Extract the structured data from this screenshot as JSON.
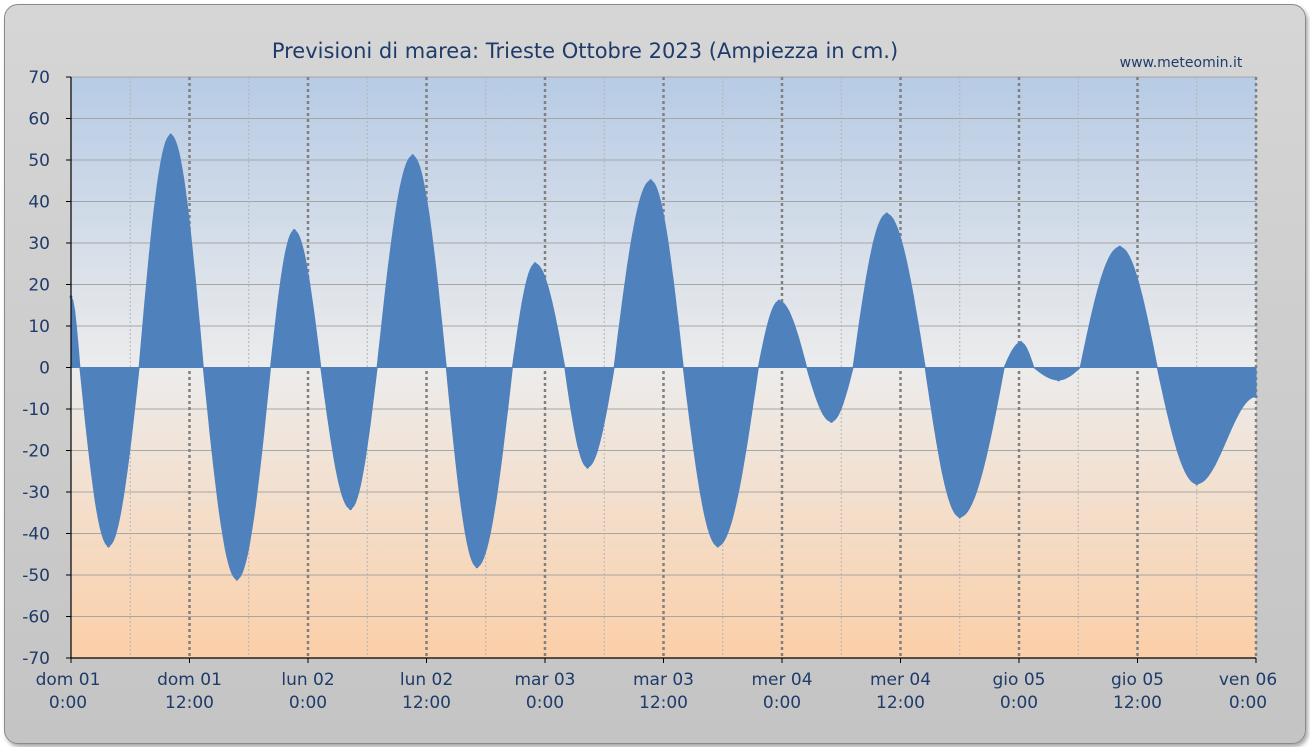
{
  "chart_data": {
    "type": "area",
    "title": "Previsioni di marea: Trieste Ottobre 2023 (Ampiezza in cm.)",
    "watermark": "www.meteomin.it",
    "ylim": [
      -70,
      70
    ],
    "yticks": [
      70,
      60,
      50,
      40,
      30,
      20,
      10,
      0,
      -10,
      -20,
      -30,
      -40,
      -50,
      -60,
      -70
    ],
    "xlim_hours": [
      0,
      120
    ],
    "xticks": [
      {
        "hour": 0,
        "day": "dom",
        "date": "01",
        "time": "0:00"
      },
      {
        "hour": 12,
        "day": "dom",
        "date": "01",
        "time": "12:00"
      },
      {
        "hour": 24,
        "day": "lun",
        "date": "02",
        "time": "0:00"
      },
      {
        "hour": 36,
        "day": "lun",
        "date": "02",
        "time": "12:00"
      },
      {
        "hour": 48,
        "day": "mar",
        "date": "03",
        "time": "0:00"
      },
      {
        "hour": 60,
        "day": "mar",
        "date": "03",
        "time": "12:00"
      },
      {
        "hour": 72,
        "day": "mer",
        "date": "04",
        "time": "0:00"
      },
      {
        "hour": 84,
        "day": "mer",
        "date": "04",
        "time": "12:00"
      },
      {
        "hour": 96,
        "day": "gio",
        "date": "05",
        "time": "0:00"
      },
      {
        "hour": 108,
        "day": "gio",
        "date": "05",
        "time": "12:00"
      },
      {
        "hour": 120,
        "day": "ven",
        "date": "06",
        "time": "0:00"
      }
    ],
    "series": [
      {
        "color": "#4f81bd",
        "points": [
          [
            0,
            17
          ],
          [
            0.9,
            0
          ],
          [
            3.8,
            -43
          ],
          [
            6.9,
            0
          ],
          [
            10.1,
            56
          ],
          [
            13.4,
            0
          ],
          [
            16.8,
            -51
          ],
          [
            20.2,
            0
          ],
          [
            22.6,
            33
          ],
          [
            25.3,
            0
          ],
          [
            28.3,
            -34
          ],
          [
            31.0,
            0
          ],
          [
            34.6,
            51
          ],
          [
            38.0,
            0
          ],
          [
            41.1,
            -48
          ],
          [
            44.7,
            0
          ],
          [
            47.0,
            25
          ],
          [
            50.0,
            0
          ],
          [
            52.3,
            -24
          ],
          [
            55.0,
            0
          ],
          [
            58.7,
            45
          ],
          [
            62.0,
            0
          ],
          [
            65.5,
            -43
          ],
          [
            69.6,
            0
          ],
          [
            71.7,
            16
          ],
          [
            74.5,
            0
          ],
          [
            77.0,
            -13
          ],
          [
            79.2,
            0
          ],
          [
            82.6,
            37
          ],
          [
            86.5,
            0
          ],
          [
            90.0,
            -36
          ],
          [
            94.5,
            0
          ],
          [
            96.2,
            6
          ],
          [
            97.5,
            0
          ],
          [
            100.0,
            -3
          ],
          [
            102.2,
            0
          ],
          [
            106.2,
            29
          ],
          [
            110.0,
            0
          ],
          [
            114.0,
            -28
          ],
          [
            120.0,
            -7
          ]
        ]
      }
    ]
  }
}
